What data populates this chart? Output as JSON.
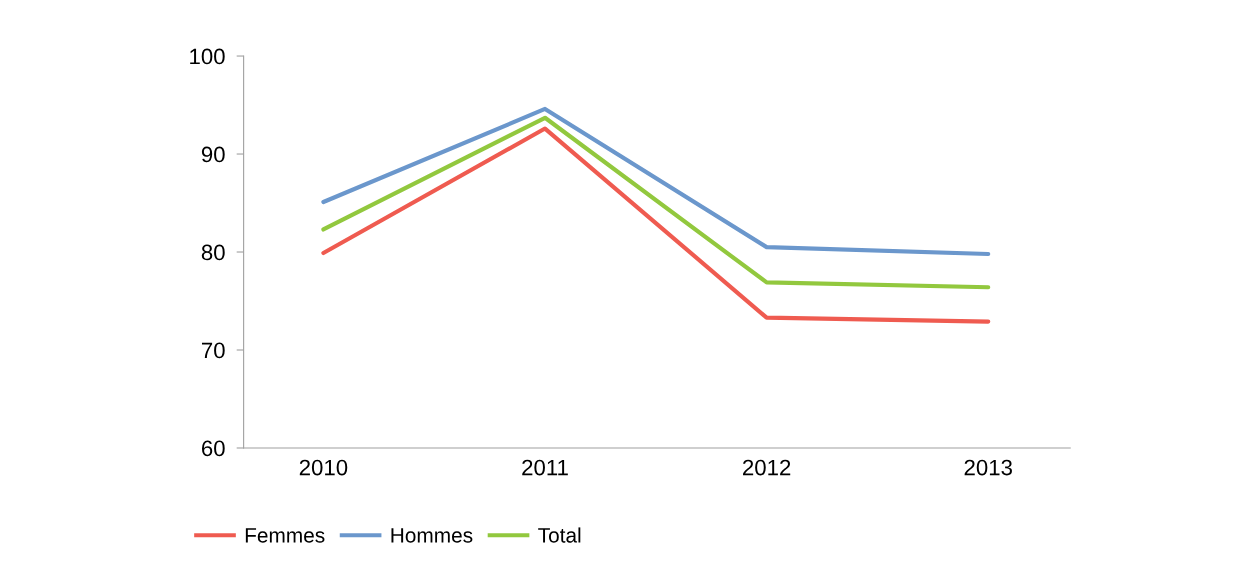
{
  "chart_data": {
    "type": "line",
    "categories": [
      "2010",
      "2011",
      "2012",
      "2013"
    ],
    "series": [
      {
        "name": "Femmes",
        "color": "#ef5b50",
        "values": [
          79.9,
          92.6,
          73.3,
          72.9
        ]
      },
      {
        "name": "Hommes",
        "color": "#6b97cc",
        "values": [
          85.1,
          94.6,
          80.5,
          79.8
        ]
      },
      {
        "name": "Total",
        "color": "#92c83e",
        "values": [
          82.3,
          93.7,
          76.9,
          76.4
        ]
      }
    ],
    "ylim": [
      60,
      100
    ],
    "yticks": [
      60,
      70,
      80,
      90,
      100
    ],
    "grid": false,
    "legend": "bottom left",
    "marker": "none",
    "line_style": "solid"
  }
}
